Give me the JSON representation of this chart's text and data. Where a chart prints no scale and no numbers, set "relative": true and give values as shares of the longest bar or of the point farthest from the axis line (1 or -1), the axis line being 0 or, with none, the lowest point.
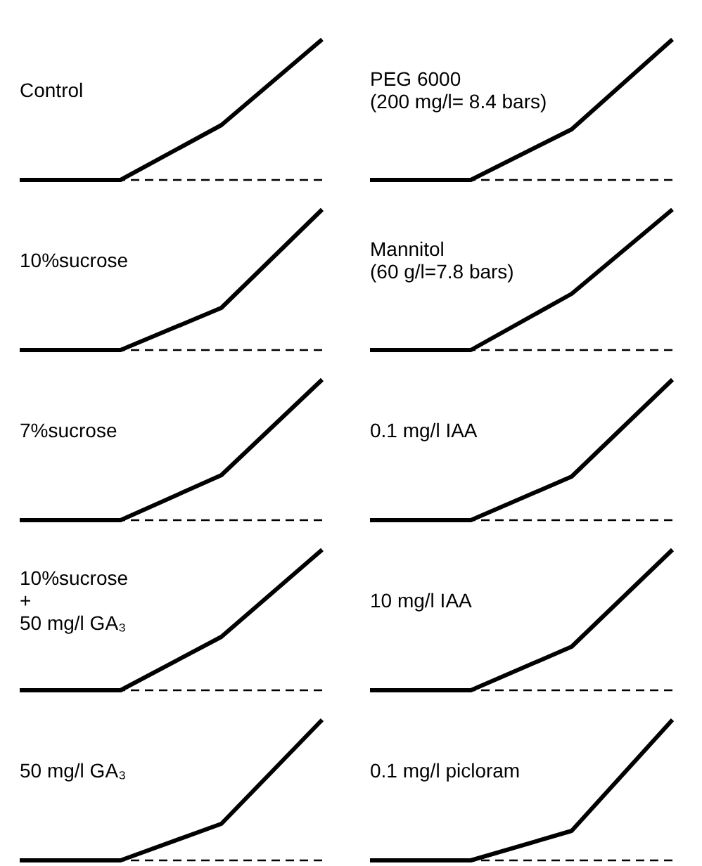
{
  "chart_data": [
    {
      "type": "line",
      "title": "Control",
      "categories": [
        null,
        null,
        null,
        null
      ],
      "relative": true,
      "series": [
        {
          "color": "#000000",
          "values": [
            0,
            0,
            0.39,
            1
          ]
        }
      ],
      "ref_lines": [
        {
          "axis": "y",
          "value": 0,
          "line_style": "dashed"
        }
      ]
    },
    {
      "type": "line",
      "title": "PEG 6000\n(200 mg/l= 8.4 bars)",
      "categories": [
        null,
        null,
        null,
        null
      ],
      "relative": true,
      "series": [
        {
          "color": "#000000",
          "values": [
            0,
            0,
            0.36,
            1
          ]
        }
      ],
      "ref_lines": [
        {
          "axis": "y",
          "value": 0,
          "line_style": "dashed"
        }
      ]
    },
    {
      "type": "line",
      "title": "10%sucrose",
      "categories": [
        null,
        null,
        null,
        null
      ],
      "relative": true,
      "series": [
        {
          "color": "#000000",
          "values": [
            0,
            0,
            0.3,
            1
          ]
        }
      ],
      "ref_lines": [
        {
          "axis": "y",
          "value": 0,
          "line_style": "dashed"
        }
      ]
    },
    {
      "type": "line",
      "title": "Mannitol\n(60 g/l=7.8 bars)",
      "categories": [
        null,
        null,
        null,
        null
      ],
      "relative": true,
      "series": [
        {
          "color": "#000000",
          "values": [
            0,
            0,
            0.4,
            1
          ]
        }
      ],
      "ref_lines": [
        {
          "axis": "y",
          "value": 0,
          "line_style": "dashed"
        }
      ]
    },
    {
      "type": "line",
      "title": "7%sucrose",
      "categories": [
        null,
        null,
        null,
        null
      ],
      "relative": true,
      "series": [
        {
          "color": "#000000",
          "values": [
            0,
            0,
            0.32,
            1
          ]
        }
      ],
      "ref_lines": [
        {
          "axis": "y",
          "value": 0,
          "line_style": "dashed"
        }
      ]
    },
    {
      "type": "line",
      "title": "0.1 mg/l IAA",
      "categories": [
        null,
        null,
        null,
        null
      ],
      "relative": true,
      "series": [
        {
          "color": "#000000",
          "values": [
            0,
            0,
            0.31,
            1
          ]
        }
      ],
      "ref_lines": [
        {
          "axis": "y",
          "value": 0,
          "line_style": "dashed"
        }
      ]
    },
    {
      "type": "line",
      "title": "10%sucrose\n+\n50 mg/l GA₃",
      "categories": [
        null,
        null,
        null,
        null
      ],
      "relative": true,
      "series": [
        {
          "color": "#000000",
          "values": [
            0,
            0,
            0.38,
            1
          ]
        }
      ],
      "ref_lines": [
        {
          "axis": "y",
          "value": 0,
          "line_style": "dashed"
        }
      ]
    },
    {
      "type": "line",
      "title": "10 mg/l IAA",
      "categories": [
        null,
        null,
        null,
        null
      ],
      "relative": true,
      "series": [
        {
          "color": "#000000",
          "values": [
            0,
            0,
            0.31,
            1
          ]
        }
      ],
      "ref_lines": [
        {
          "axis": "y",
          "value": 0,
          "line_style": "dashed"
        }
      ]
    },
    {
      "type": "line",
      "title": "50 mg/l GA₃",
      "categories": [
        null,
        null,
        null,
        null
      ],
      "relative": true,
      "series": [
        {
          "color": "#000000",
          "values": [
            0,
            0,
            0.26,
            1
          ]
        }
      ],
      "ref_lines": [
        {
          "axis": "y",
          "value": 0,
          "line_style": "dashed"
        }
      ]
    },
    {
      "type": "line",
      "title": "0.1 mg/l picloram",
      "categories": [
        null,
        null,
        null,
        null
      ],
      "relative": true,
      "series": [
        {
          "color": "#000000",
          "values": [
            0,
            0,
            0.21,
            1
          ]
        }
      ],
      "ref_lines": [
        {
          "axis": "y",
          "value": 0,
          "line_style": "dashed"
        }
      ]
    }
  ]
}
